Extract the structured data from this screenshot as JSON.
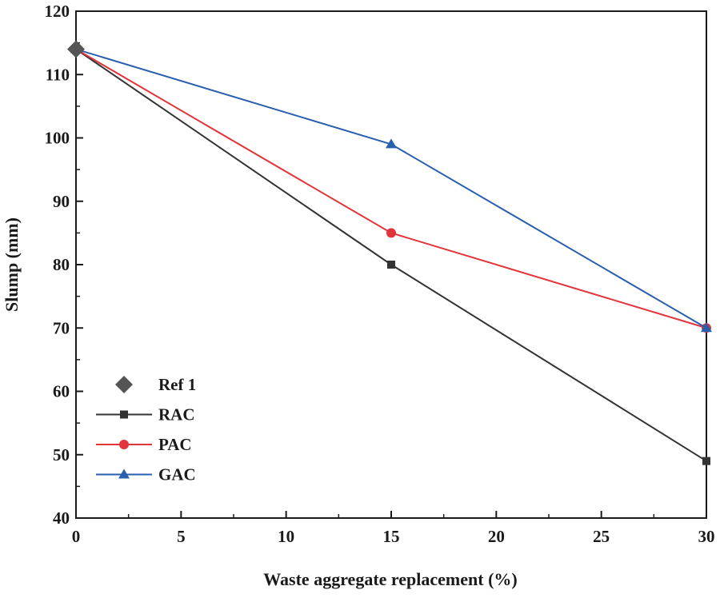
{
  "chart_data": {
    "type": "line",
    "title": "",
    "xlabel": "Waste aggregate replacement (%)",
    "ylabel": "Slump (mm)",
    "xlim": [
      0,
      30
    ],
    "ylim": [
      40,
      120
    ],
    "x_ticks": [
      0,
      5,
      10,
      15,
      20,
      25,
      30
    ],
    "y_ticks": [
      40,
      50,
      60,
      70,
      80,
      90,
      100,
      110,
      120
    ],
    "grid": false,
    "legend_position": "bottom-left",
    "series": [
      {
        "name": "Ref 1",
        "marker": "diamond",
        "line": false,
        "color": "#555555",
        "x": [
          0
        ],
        "y": [
          114
        ]
      },
      {
        "name": "RAC",
        "marker": "square",
        "line": true,
        "color": "#333333",
        "x": [
          0,
          15,
          30
        ],
        "y": [
          114,
          80,
          49
        ]
      },
      {
        "name": "PAC",
        "marker": "circle",
        "line": true,
        "color": "#e2343b",
        "x": [
          0,
          15,
          30
        ],
        "y": [
          114,
          85,
          70
        ]
      },
      {
        "name": "GAC",
        "marker": "triangle",
        "line": true,
        "color": "#2a5fae",
        "x": [
          0,
          15,
          30
        ],
        "y": [
          114,
          99,
          70
        ]
      }
    ]
  }
}
